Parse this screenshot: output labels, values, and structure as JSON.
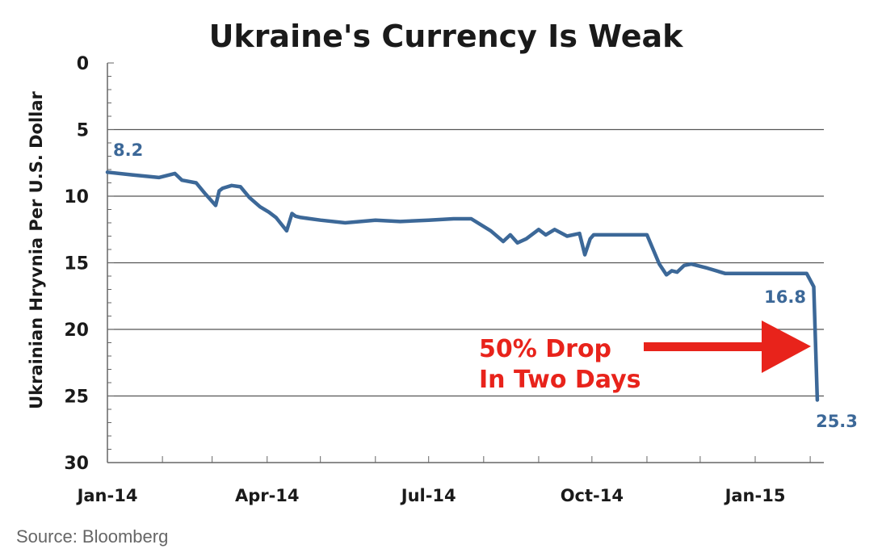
{
  "chart_data": {
    "type": "line",
    "title": "Ukraine's Currency Is Weak",
    "ylabel": "Ukrainian Hryvnia Per U.S. Dollar",
    "xlabel": "",
    "ylim": [
      0,
      30
    ],
    "y_inverted": true,
    "grid": true,
    "yticks": [
      "0",
      "5",
      "10",
      "15",
      "20",
      "25",
      "30"
    ],
    "xticks": [
      "Jan-14",
      "Apr-14",
      "Jul-14",
      "Oct-14",
      "Jan-15"
    ],
    "xtick_dates": [
      "2014-01-01",
      "2014-04-01",
      "2014-07-01",
      "2014-10-01",
      "2015-01-01"
    ],
    "line_color": "#3c6898",
    "series": [
      {
        "x": [
          "2014-01-01",
          "2014-01-15",
          "2014-01-30",
          "2014-02-08",
          "2014-02-12",
          "2014-02-20",
          "2014-02-25",
          "2014-03-03",
          "2014-03-05",
          "2014-03-07",
          "2014-03-12",
          "2014-03-17",
          "2014-03-22",
          "2014-03-28",
          "2014-04-02",
          "2014-04-06",
          "2014-04-12",
          "2014-04-15",
          "2014-04-17",
          "2014-04-20",
          "2014-05-01",
          "2014-05-15",
          "2014-06-01",
          "2014-06-15",
          "2014-07-01",
          "2014-07-15",
          "2014-07-25",
          "2014-08-05",
          "2014-08-12",
          "2014-08-16",
          "2014-08-20",
          "2014-08-25",
          "2014-09-01",
          "2014-09-05",
          "2014-09-10",
          "2014-09-17",
          "2014-09-24",
          "2014-09-27",
          "2014-09-30",
          "2014-10-02",
          "2014-10-05",
          "2014-10-10",
          "2014-10-20",
          "2014-11-01",
          "2014-11-08",
          "2014-11-12",
          "2014-11-15",
          "2014-11-18",
          "2014-11-22",
          "2014-11-26",
          "2014-12-05",
          "2014-12-15",
          "2015-01-01",
          "2015-01-15",
          "2015-01-30",
          "2015-02-03",
          "2015-02-05"
        ],
        "y": [
          8.2,
          8.4,
          8.6,
          8.3,
          8.8,
          9.0,
          9.8,
          10.7,
          9.6,
          9.4,
          9.2,
          9.3,
          10.1,
          10.8,
          11.2,
          11.6,
          12.6,
          11.3,
          11.5,
          11.6,
          11.8,
          12.0,
          11.8,
          11.9,
          11.8,
          11.7,
          11.7,
          12.6,
          13.4,
          12.9,
          13.5,
          13.2,
          12.5,
          12.9,
          12.5,
          13.0,
          12.8,
          14.4,
          13.2,
          12.9,
          12.9,
          12.9,
          12.9,
          12.9,
          15.1,
          15.9,
          15.6,
          15.7,
          15.2,
          15.1,
          15.4,
          15.8,
          15.8,
          15.8,
          15.8,
          16.8,
          25.3
        ]
      }
    ],
    "annotations": {
      "start_value": "8.2",
      "pre_drop_value": "16.8",
      "end_value": "25.3",
      "drop_line1": "50% Drop",
      "drop_line2": "In Two Days",
      "drop_color": "#e8231b"
    }
  },
  "source": "Source: Bloomberg"
}
